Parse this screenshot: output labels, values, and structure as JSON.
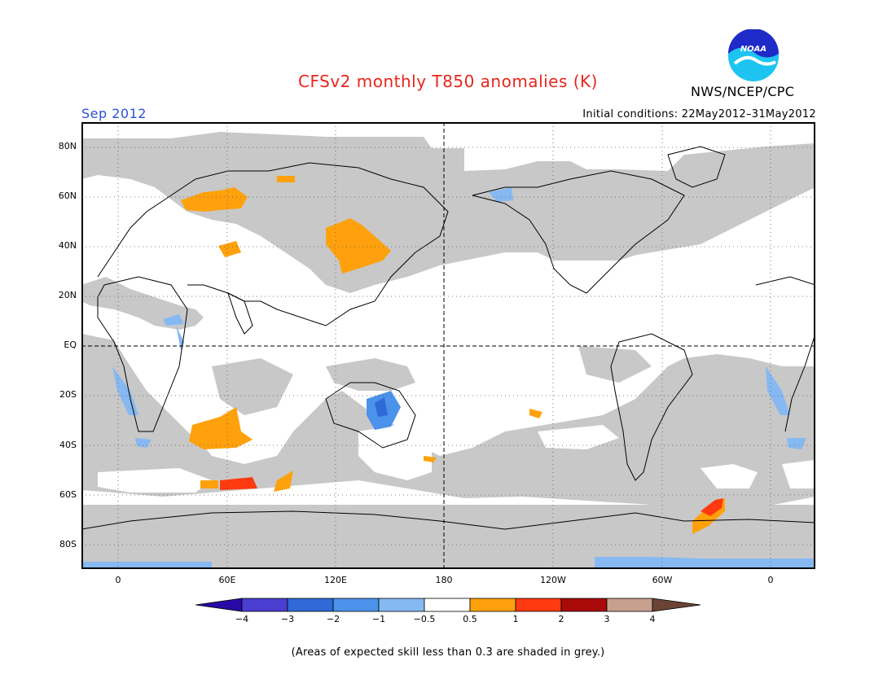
{
  "header": {
    "title": "CFSv2 monthly T850 anomalies (K)",
    "month": "Sep 2012",
    "initial_conditions": "Initial conditions: 22May2012–31May2012",
    "agency": "NWS/NCEP/CPC",
    "logo_text": "NOAA"
  },
  "map": {
    "lat_labels": [
      "80N",
      "60N",
      "40N",
      "20N",
      "EQ",
      "20S",
      "40S",
      "60S",
      "80S"
    ],
    "lon_labels": [
      "0",
      "60E",
      "120E",
      "180",
      "120W",
      "60W",
      "0"
    ],
    "grey_meaning": "skill < 0.3"
  },
  "colorbar": {
    "labels": [
      "−4",
      "−3",
      "−2",
      "−1",
      "−0.5",
      "0.5",
      "1",
      "2",
      "3",
      "4"
    ],
    "colors": [
      "#2a0aa6",
      "#4a3fd0",
      "#2f6ad8",
      "#4a92ea",
      "#86b9f2",
      "#ffffff",
      "#ffa10c",
      "#ff3a10",
      "#a80a0a",
      "#c8a08f",
      "#6b4334"
    ]
  },
  "footnote": "(Areas of expected skill less than 0.3 are shaded in grey.)"
}
